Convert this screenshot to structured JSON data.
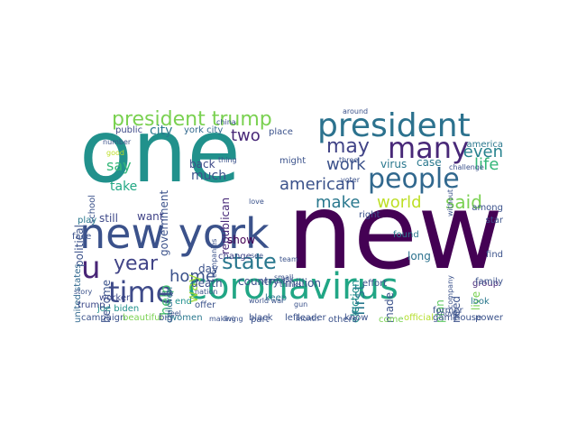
{
  "words": [
    {
      "text": "one",
      "color": "#21918c"
    },
    {
      "text": "new",
      "color": "#440154"
    },
    {
      "text": "new york",
      "color": "#3b528b"
    },
    {
      "text": "coronavirus",
      "color": "#21a685"
    },
    {
      "text": "president",
      "color": "#2c728e"
    },
    {
      "text": "president trump",
      "color": "#7ad151"
    },
    {
      "text": "many",
      "color": "#482878"
    },
    {
      "text": "people",
      "color": "#31688e"
    },
    {
      "text": "time",
      "color": "#3e4a89"
    },
    {
      "text": "u",
      "color": "#482576"
    },
    {
      "text": "state",
      "color": "#2a788e"
    },
    {
      "text": "year",
      "color": "#414487"
    },
    {
      "text": "may",
      "color": "#414487"
    },
    {
      "text": "work",
      "color": "#3b528b"
    },
    {
      "text": "even",
      "color": "#26828e"
    },
    {
      "text": "life",
      "color": "#35b779"
    },
    {
      "text": "said",
      "color": "#7ad151"
    },
    {
      "text": "american",
      "color": "#3b528b"
    },
    {
      "text": "make",
      "color": "#2a788e"
    },
    {
      "text": "world",
      "color": "#bddf26"
    },
    {
      "text": "first",
      "color": "#2a788e"
    },
    {
      "text": "two",
      "color": "#482878"
    },
    {
      "text": "say",
      "color": "#35b779"
    },
    {
      "text": "take",
      "color": "#22a884"
    },
    {
      "text": "home",
      "color": "#3b528b"
    },
    {
      "text": "help",
      "color": "#44bf70"
    },
    {
      "text": "way",
      "color": "#9fda3a"
    },
    {
      "text": "city",
      "color": "#2a788e"
    },
    {
      "text": "government",
      "color": "#3b528b"
    },
    {
      "text": "much",
      "color": "#3b528b"
    },
    {
      "text": "back",
      "color": "#3e4a89"
    },
    {
      "text": "virus",
      "color": "#2a788e"
    },
    {
      "text": "case",
      "color": "#2a788e"
    },
    {
      "text": "republican",
      "color": "#482878"
    },
    {
      "text": "show",
      "color": "#440154"
    },
    {
      "text": "death",
      "color": "#3b528b"
    },
    {
      "text": "country",
      "color": "#3b528b"
    },
    {
      "text": "political",
      "color": "#3b528b"
    },
    {
      "text": "still",
      "color": "#3e4a89"
    },
    {
      "text": "want",
      "color": "#414487"
    },
    {
      "text": "become",
      "color": "#3b528b"
    },
    {
      "text": "children",
      "color": "#2c728e"
    },
    {
      "text": "day",
      "color": "#3b528b"
    },
    {
      "text": "million",
      "color": "#3b528b"
    },
    {
      "text": "election",
      "color": "#21918c"
    },
    {
      "text": "made",
      "color": "#3b528b"
    },
    {
      "text": "long",
      "color": "#2c728e"
    },
    {
      "text": "plan",
      "color": "#5ec962"
    },
    {
      "text": "need",
      "color": "#3b528b"
    },
    {
      "text": "live",
      "color": "#7ad151"
    },
    {
      "text": "found",
      "color": "#2a788e"
    },
    {
      "text": "effort",
      "color": "#3b528b"
    },
    {
      "text": "group",
      "color": "#482878"
    },
    {
      "text": "worker",
      "color": "#3e4a89"
    },
    {
      "text": "joe biden",
      "color": "#21918c"
    },
    {
      "text": "united states",
      "color": "#31688e"
    },
    {
      "text": "trump",
      "color": "#3e4a89"
    },
    {
      "text": "part",
      "color": "#3b528b"
    },
    {
      "text": "black",
      "color": "#3b528b"
    },
    {
      "text": "know",
      "color": "#3b528b"
    },
    {
      "text": "come",
      "color": "#7ad151"
    },
    {
      "text": "official",
      "color": "#b5de2b"
    },
    {
      "text": "house",
      "color": "#3b528b"
    },
    {
      "text": "power",
      "color": "#3b528b"
    },
    {
      "text": "school",
      "color": "#3b528b"
    },
    {
      "text": "public",
      "color": "#3e4a89"
    },
    {
      "text": "york city",
      "color": "#31688e"
    },
    {
      "text": "place",
      "color": "#3b528b"
    },
    {
      "text": "might",
      "color": "#3b528b"
    },
    {
      "text": "america",
      "color": "#2a788e"
    },
    {
      "text": "family",
      "color": "#3b528b"
    },
    {
      "text": "change",
      "color": "#414487"
    },
    {
      "text": "leader",
      "color": "#3b528b"
    },
    {
      "text": "others",
      "color": "#3b528b"
    },
    {
      "text": "face",
      "color": "#3b528b"
    },
    {
      "text": "play",
      "color": "#2a788e"
    },
    {
      "text": "women",
      "color": "#2a788e"
    },
    {
      "text": "campaign",
      "color": "#3b528b"
    },
    {
      "text": "beautiful",
      "color": "#7ad151"
    },
    {
      "text": "big",
      "color": "#3b528b"
    },
    {
      "text": "end",
      "color": "#21918c"
    },
    {
      "text": "keep",
      "color": "#2a788e"
    },
    {
      "text": "right",
      "color": "#3b528b"
    },
    {
      "text": "former",
      "color": "#3b528b"
    },
    {
      "text": "among",
      "color": "#3b528b"
    },
    {
      "text": "star",
      "color": "#3b528b"
    },
    {
      "text": "find",
      "color": "#3b528b"
    },
    {
      "text": "game",
      "color": "#3b528b"
    },
    {
      "text": "look",
      "color": "#2a788e"
    },
    {
      "text": "left",
      "color": "#3b528b"
    },
    {
      "text": "offer",
      "color": "#3b528b"
    },
    {
      "text": "three",
      "color": "#3b528b"
    },
    {
      "text": "china",
      "color": "#3b528b"
    },
    {
      "text": "thing",
      "color": "#3b528b"
    },
    {
      "text": "good",
      "color": "#bddf26"
    },
    {
      "text": "month",
      "color": "#3b528b"
    },
    {
      "text": "thinks",
      "color": "#3b528b"
    },
    {
      "text": "nation",
      "color": "#3b528b"
    },
    {
      "text": "number",
      "color": "#3b528b"
    },
    {
      "text": "story",
      "color": "#3b528b"
    },
    {
      "text": "voter",
      "color": "#3b528b"
    },
    {
      "text": "see",
      "color": "#3b528b"
    },
    {
      "text": "team",
      "color": "#3b528b"
    },
    {
      "text": "around",
      "color": "#3b528b"
    },
    {
      "text": "small",
      "color": "#3b528b"
    },
    {
      "text": "companies",
      "color": "#3b528b"
    },
    {
      "text": "challenge",
      "color": "#3b528b"
    },
    {
      "text": "company",
      "color": "#3b528b"
    },
    {
      "text": "season",
      "color": "#3b528b"
    },
    {
      "text": "making",
      "color": "#3b528b"
    },
    {
      "text": "ask",
      "color": "#3b528b"
    },
    {
      "text": "love",
      "color": "#3b528b"
    },
    {
      "text": "rate",
      "color": "#3b528b"
    },
    {
      "text": "gun",
      "color": "#3b528b"
    },
    {
      "text": "without",
      "color": "#3b528b"
    },
    {
      "text": "living",
      "color": "#3b528b"
    },
    {
      "text": "known",
      "color": "#3b528b"
    },
    {
      "text": "feel",
      "color": "#3b528b"
    },
    {
      "text": "world war",
      "color": "#3b528b"
    }
  ]
}
